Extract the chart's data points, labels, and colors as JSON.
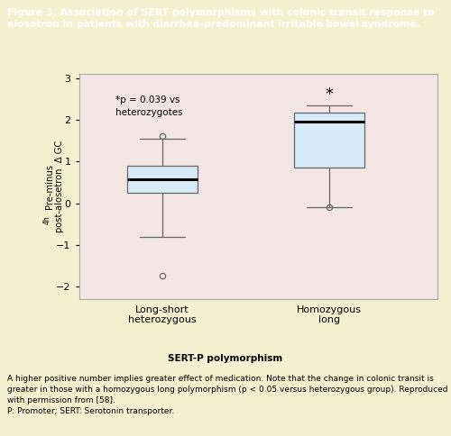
{
  "title_header": "Figure 3. Association of SERT polymorphisms with colonic transit response to\nalosetron in patients with diarrhea-predominant irritable bowel syndrome.",
  "header_bg": "#1a1a1a",
  "header_text_color": "#ffffff",
  "plot_bg": "#f5e6e6",
  "outer_bg": "#f5f0d0",
  "categories": [
    "Long-short\nheterozygous",
    "Homozygous\nlong"
  ],
  "ylim": [
    -2.3,
    3.1
  ],
  "yticks": [
    -2,
    -1,
    0,
    1,
    2,
    3
  ],
  "box1": {
    "q1": 0.25,
    "median": 0.58,
    "q3": 0.9,
    "whisker_low": -0.8,
    "whisker_high": 1.55,
    "outliers": [
      -1.75,
      1.62
    ]
  },
  "box2": {
    "q1": 0.85,
    "median": 1.95,
    "q3": 2.18,
    "whisker_low": -0.1,
    "whisker_high": 2.35,
    "outliers": [
      -0.1
    ]
  },
  "box_facecolor": "#d6eaf8",
  "box_edgecolor": "#666666",
  "median_color": "#000000",
  "whisker_color": "#666666",
  "outlier_edgecolor": "#666666",
  "annotation_text": "*p = 0.039 vs\nheterozygotes",
  "star_text": "*",
  "caption_bold": "SERT-P polymorphism",
  "caption_line1": "A higher positive number implies greater effect of medication. Note that the change in colonic transit is",
  "caption_line2": "greater in those with a homozygous long polymorphism (p < 0.05 versus heterozygous group). Reproduced",
  "caption_line3": "with permission from [58].",
  "caption_line4": "P: Promoter; SERT: Serotonin transporter.",
  "box_width": 0.42,
  "positions": [
    1,
    2
  ]
}
